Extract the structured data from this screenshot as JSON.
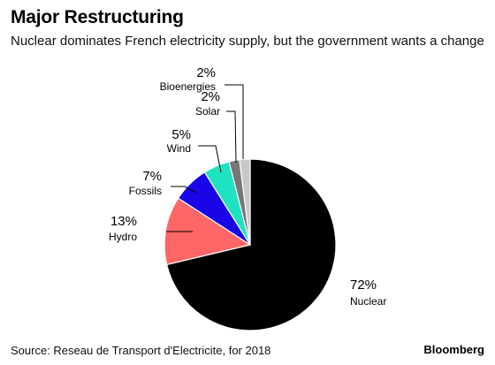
{
  "header": {
    "title": "Major Restructuring",
    "subtitle": "Nuclear dominates French electricity supply, but the government wants a change"
  },
  "footer": {
    "source": "Source: Reseau de Transport d'Electricite, for 2018",
    "brand": "Bloomberg"
  },
  "chart_data": {
    "type": "pie",
    "title": "Major Restructuring",
    "subtitle": "Nuclear dominates French electricity supply, but the government wants a change",
    "unit": "%",
    "slices": [
      {
        "label": "Nuclear",
        "value": 72,
        "value_label": "72%",
        "color": "#000000"
      },
      {
        "label": "Hydro",
        "value": 13,
        "value_label": "13%",
        "color": "#ff6666"
      },
      {
        "label": "Fossils",
        "value": 7,
        "value_label": "7%",
        "color": "#1a05e8"
      },
      {
        "label": "Wind",
        "value": 5,
        "value_label": "5%",
        "color": "#1ee3c0"
      },
      {
        "label": "Solar",
        "value": 2,
        "value_label": "2%",
        "color": "#777777"
      },
      {
        "label": "Bioenergies",
        "value": 2,
        "value_label": "2%",
        "color": "#c8c8c8"
      }
    ],
    "start": "12 o'clock",
    "direction": "clockwise"
  }
}
